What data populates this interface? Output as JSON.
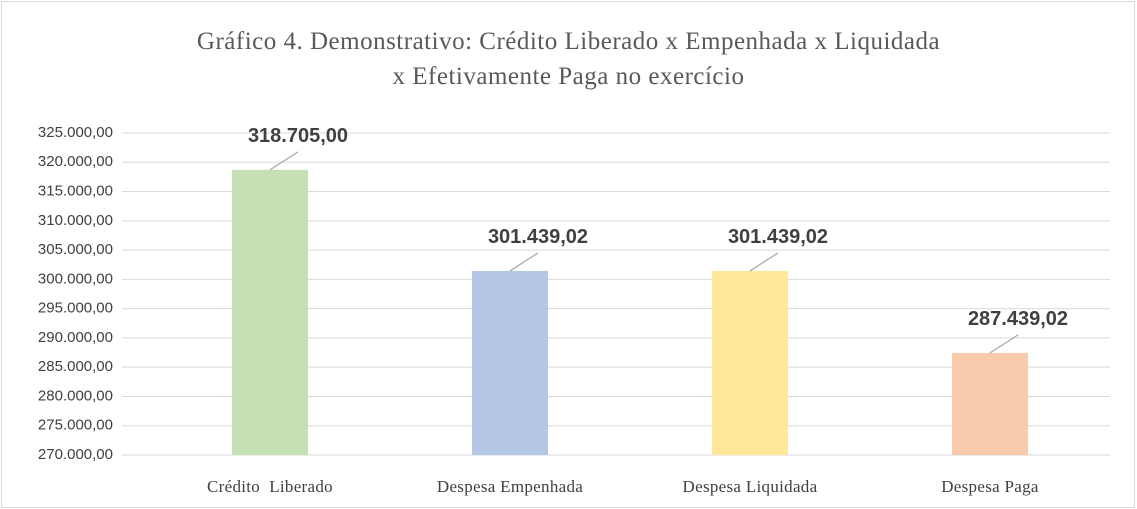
{
  "chart_data": {
    "type": "bar",
    "title": "Gráfico 4. Demonstrativo: Crédito Liberado x Empenhada x Liquidada x Efetivamente Paga no exercício",
    "categories": [
      "Crédito  Liberado",
      "Despesa Empenhada",
      "Despesa Liquidada",
      "Despesa Paga"
    ],
    "values": [
      318705.0,
      301439.02,
      301439.02,
      287439.02
    ],
    "value_labels": [
      "318.705,00",
      "301.439,02",
      "301.439,02",
      "287.439,02"
    ],
    "colors": [
      "#c5e0b4",
      "#b4c7e7",
      "#ffe699",
      "#f8cbad"
    ],
    "ylim": [
      270000,
      325000
    ],
    "yticks": [
      {
        "value": 270000,
        "label": "270.000,00"
      },
      {
        "value": 275000,
        "label": "275.000,00"
      },
      {
        "value": 280000,
        "label": "280.000,00"
      },
      {
        "value": 285000,
        "label": "285.000,00"
      },
      {
        "value": 290000,
        "label": "290.000,00"
      },
      {
        "value": 295000,
        "label": "295.000,00"
      },
      {
        "value": 300000,
        "label": "300.000,00"
      },
      {
        "value": 305000,
        "label": "305.000,00"
      },
      {
        "value": 310000,
        "label": "310.000,00"
      },
      {
        "value": 315000,
        "label": "315.000,00"
      },
      {
        "value": 320000,
        "label": "320.000,00"
      },
      {
        "value": 325000,
        "label": "325.000,00"
      }
    ],
    "grid": true
  }
}
